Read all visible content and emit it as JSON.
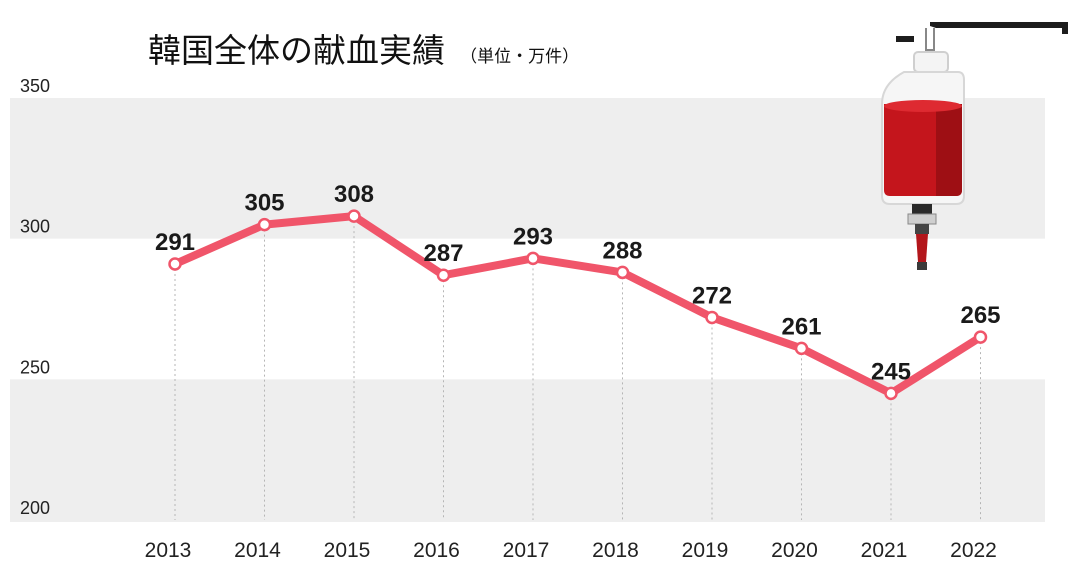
{
  "title": "韓国全体の献血実績",
  "subtitle": "（単位・万件）",
  "colors": {
    "line": "#f0556a",
    "band": "#eeeeee",
    "bag": "#c4151c",
    "text": "#1a1a1a"
  },
  "chart_data": {
    "type": "line",
    "title": "韓国全体の献血実績",
    "subtitle": "（単位・万件）",
    "xlabel": "",
    "ylabel": "",
    "ylim": [
      200,
      350
    ],
    "yticks": [
      200,
      250,
      300,
      350
    ],
    "categories": [
      "2013",
      "2014",
      "2015",
      "2016",
      "2017",
      "2018",
      "2019",
      "2020",
      "2021",
      "2022"
    ],
    "values": [
      291,
      305,
      308,
      287,
      293,
      288,
      272,
      261,
      245,
      265
    ],
    "grid": false,
    "legend": "none",
    "decoration": "blood-bag-icon"
  }
}
